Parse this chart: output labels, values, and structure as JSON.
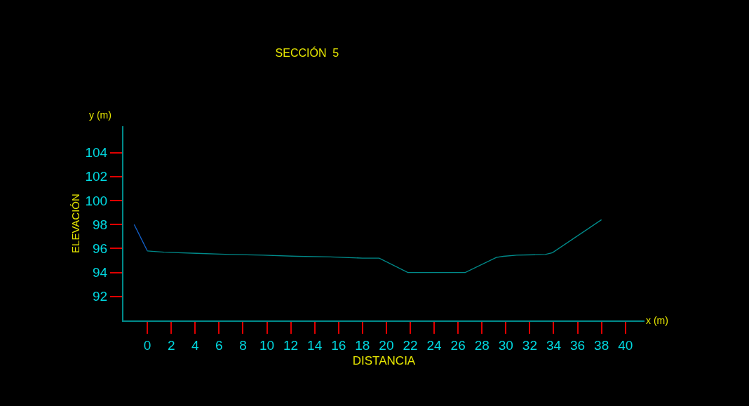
{
  "chart_data": {
    "type": "line",
    "title": "SECCIÓN  5",
    "xlabel": "DISTANCIA",
    "ylabel": "ELEVACIÓN",
    "annotations": [
      "y (m)",
      "x (m)"
    ],
    "series": [
      {
        "color": "#1464d2",
        "x": [
          -1.1,
          0
        ],
        "values": [
          98.0,
          95.8
        ]
      },
      {
        "color": "#008b8b",
        "x": [
          0,
          1.4,
          4.1,
          6.9,
          9.7,
          12.5,
          15.3,
          18.0,
          19.4,
          21.8,
          26.6,
          29.2,
          29.8,
          30.9,
          33.3,
          33.9,
          38.0
        ],
        "values": [
          95.8,
          95.7,
          95.6,
          95.5,
          95.45,
          95.35,
          95.3,
          95.2,
          95.2,
          94.0,
          94.0,
          95.25,
          95.35,
          95.45,
          95.5,
          95.65,
          98.4
        ]
      }
    ],
    "xlim": [
      -2,
      41.6
    ],
    "ylim": [
      90,
      106.2
    ],
    "xticks": [
      0,
      2,
      4,
      6,
      8,
      10,
      12,
      14,
      16,
      18,
      20,
      22,
      24,
      26,
      28,
      30,
      32,
      34,
      36,
      38,
      40
    ],
    "yticks": [
      92,
      94,
      96,
      98,
      100,
      102,
      104
    ],
    "grid": false,
    "marker": "none",
    "line_style": "solid"
  }
}
